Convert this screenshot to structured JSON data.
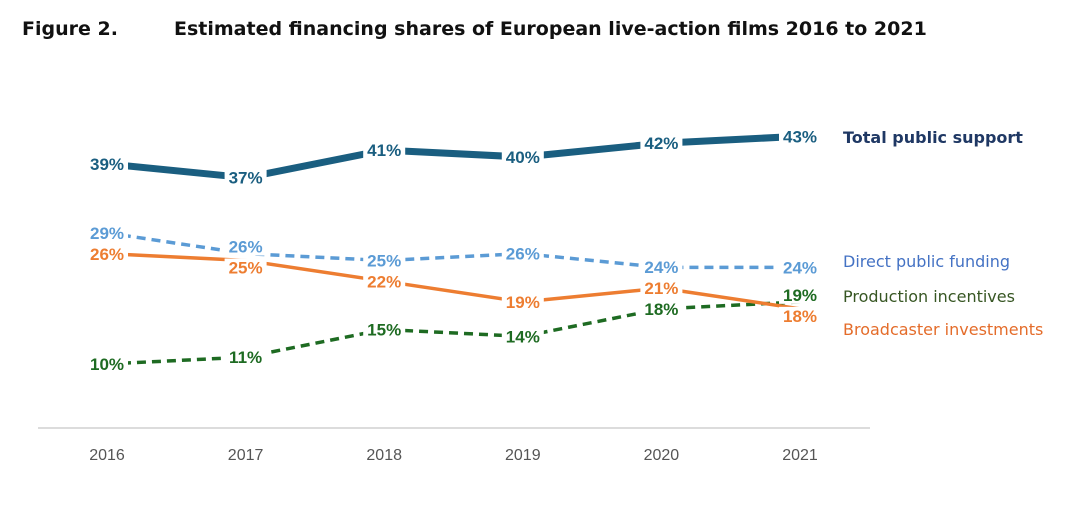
{
  "figure": {
    "number": "Figure 2.",
    "title": "Estimated financing shares of European live-action films 2016 to 2021"
  },
  "chart_data": {
    "type": "line",
    "title": "Estimated financing shares of European live-action films 2016 to 2021",
    "x": [
      "2016",
      "2017",
      "2018",
      "2019",
      "2020",
      "2021"
    ],
    "ylim": [
      0,
      45
    ],
    "grid": false,
    "legend_placement": "right",
    "series": [
      {
        "name": "Total public support",
        "values": [
          39,
          37,
          41,
          40,
          42,
          43
        ],
        "color": "#1a5e80",
        "legend_color": "#1f3864",
        "style": "solid-thick"
      },
      {
        "name": "Direct public funding",
        "values": [
          29,
          26,
          25,
          26,
          24,
          24
        ],
        "color": "#5b9bd5",
        "legend_color": "#4472c4",
        "style": "dashed"
      },
      {
        "name": "Broadcaster investments",
        "values": [
          26,
          25,
          22,
          19,
          21,
          18
        ],
        "color": "#ed7d31",
        "legend_color": "#e46c2a",
        "style": "solid"
      },
      {
        "name": "Production incentives",
        "values": [
          10,
          11,
          15,
          14,
          18,
          19
        ],
        "color": "#1e6b22",
        "legend_color": "#375623",
        "style": "dashed"
      }
    ]
  }
}
